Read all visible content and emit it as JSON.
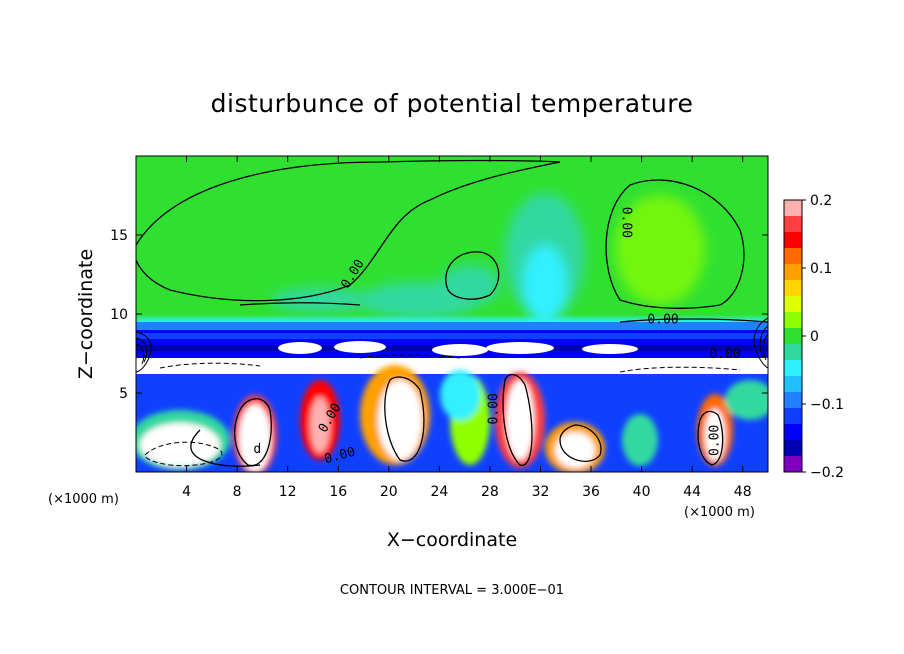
{
  "chart_data": {
    "type": "heatmap",
    "title": "disturbunce of potential temperature",
    "xlabel": "X−coordinate",
    "ylabel": "Z−coordinate",
    "x_unit_left": "(×1000 m)",
    "x_unit_right": "(×1000 m)",
    "footer": "CONTOUR INTERVAL = 3.000E−01",
    "xlim": [
      0,
      50
    ],
    "ylim": [
      0,
      20
    ],
    "x_ticks": [
      4,
      8,
      12,
      16,
      20,
      24,
      28,
      32,
      36,
      40,
      44,
      48
    ],
    "x_tick_labels": [
      "4",
      "8",
      "12",
      "16",
      "20",
      "24",
      "28",
      "32",
      "36",
      "40",
      "44",
      "48"
    ],
    "y_ticks": [
      5,
      10,
      15
    ],
    "y_tick_labels": [
      "5",
      "10",
      "15"
    ],
    "colorbar": {
      "range": [
        -0.2,
        0.2
      ],
      "ticks": [
        0.2,
        0.1,
        0,
        -0.1,
        -0.2
      ],
      "tick_labels": [
        "0.2",
        "0.1",
        "0",
        "−0.1",
        "−0.2"
      ],
      "colors": [
        "#ffb0b0",
        "#ff4040",
        "#ff0000",
        "#ff6a00",
        "#ffa000",
        "#ffd400",
        "#e0ff00",
        "#90ff00",
        "#30e030",
        "#30d8a0",
        "#30f0ff",
        "#20c0ff",
        "#2080ff",
        "#1040ff",
        "#0000ff",
        "#0000b0",
        "#8000c0"
      ]
    },
    "contour_interval": 0.3,
    "contour_labels": [
      {
        "text": "0.00",
        "x": 17.4,
        "z": 12.4,
        "angle": -58
      },
      {
        "text": "0.00",
        "x": 38.5,
        "z": 15.8,
        "angle": 90
      },
      {
        "text": "0.00",
        "x": 41.7,
        "z": 9.4,
        "angle": 0
      },
      {
        "text": "0.00",
        "x": 46.6,
        "z": 7.2,
        "angle": 0
      },
      {
        "text": "0.00",
        "x": 15.6,
        "z": 3.3,
        "angle": -60
      },
      {
        "text": "0.00",
        "x": 16.2,
        "z": 0.8,
        "angle": -15
      },
      {
        "text": "0.00",
        "x": 28.6,
        "z": 4.0,
        "angle": -90
      },
      {
        "text": "0.00",
        "x": 46.1,
        "z": 2.0,
        "angle": -90
      },
      {
        "text": "d",
        "x": 9.6,
        "z": 1.2,
        "angle": 0
      }
    ]
  }
}
